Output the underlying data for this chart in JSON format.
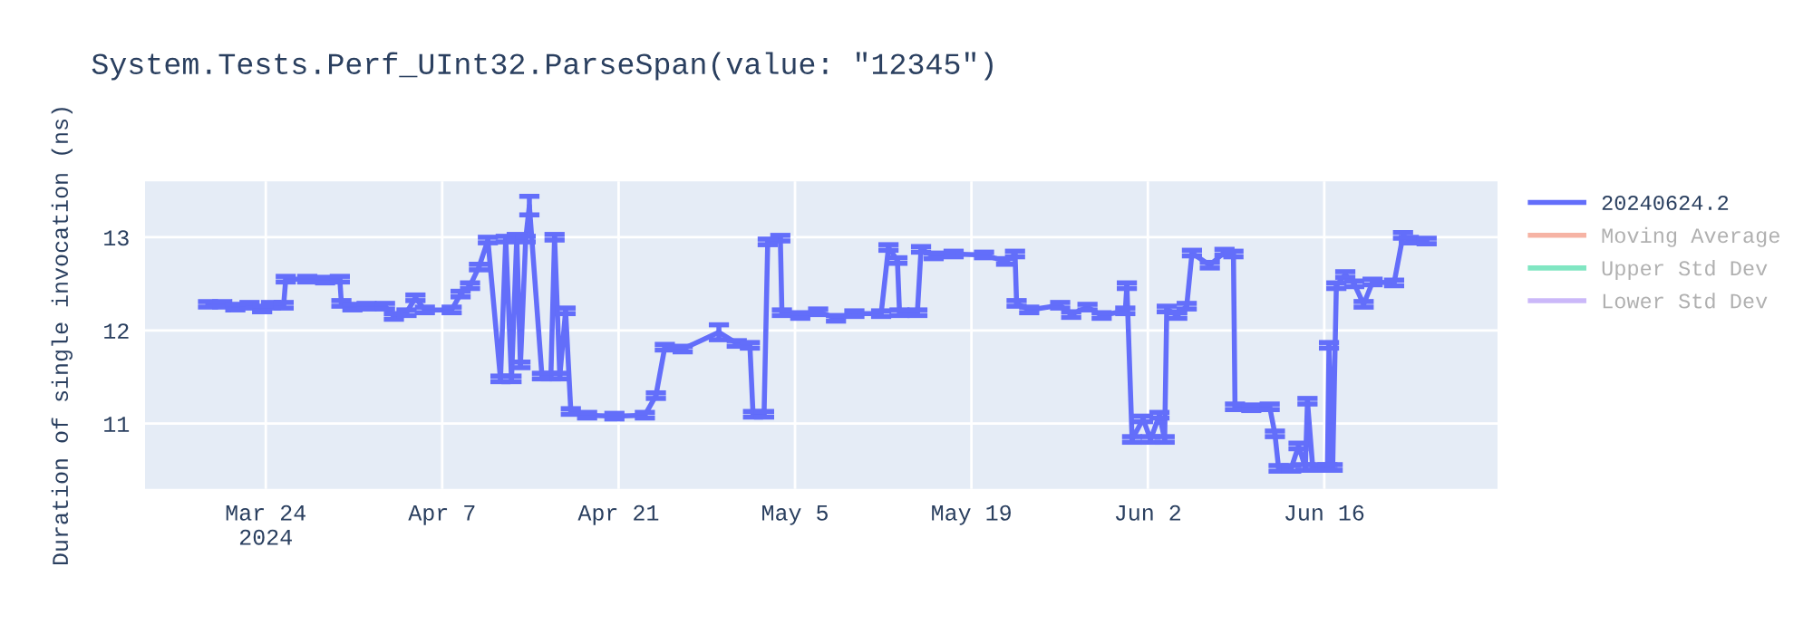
{
  "chart_data": {
    "type": "line",
    "title": "System.Tests.Perf_UInt32.ParseSpan(value: \"12345\")",
    "ylabel": "Duration of single invocation (ns)",
    "x": [
      "2024-03-19T10:00",
      "2024-03-20T13:00",
      "2024-03-21T14:00",
      "2024-03-22T17:00",
      "2024-03-23T17:00",
      "2024-03-24T10:00",
      "2024-03-25T10:00",
      "2024-03-25T14:00",
      "2024-03-27T07:00",
      "2024-03-28T17:00",
      "2024-03-29T21:00",
      "2024-03-30T00:00",
      "2024-03-30T21:00",
      "2024-04-01T00:00",
      "2024-04-02T11:00",
      "2024-04-03T04:00",
      "2024-04-04T04:00",
      "2024-04-04T21:00",
      "2024-04-05T15:00",
      "2024-04-07T18:00",
      "2024-04-08T11:00",
      "2024-04-09T05:00",
      "2024-04-09T22:00",
      "2024-04-10T15:00",
      "2024-04-11T15:00",
      "2024-04-12T01:00",
      "2024-04-12T12:00",
      "2024-04-12T22:00",
      "2024-04-13T05:00",
      "2024-04-13T15:00",
      "2024-04-13T22:00",
      "2024-04-14T22:00",
      "2024-04-15T15:00",
      "2024-04-15T22:00",
      "2024-04-16T08:00",
      "2024-04-16T19:00",
      "2024-04-17T05:00",
      "2024-04-18T12:00",
      "2024-04-20T16:00",
      "2024-04-23T02:00",
      "2024-04-23T23:00",
      "2024-04-24T16:00",
      "2024-04-26T02:00",
      "2024-04-28T23:00",
      "2024-04-30T09:00",
      "2024-05-01T10:00",
      "2024-05-01T16:00",
      "2024-05-02T13:00",
      "2024-05-02T20:00",
      "2024-05-03T20:00",
      "2024-05-03T23:00",
      "2024-05-05T10:00",
      "2024-05-06T20:00",
      "2024-05-08T06:00",
      "2024-05-09T17:00",
      "2024-05-11T20:00",
      "2024-05-12T10:00",
      "2024-05-13T03:00",
      "2024-05-13T07:00",
      "2024-05-14T17:00",
      "2024-05-15T00:00",
      "2024-05-16T00:00",
      "2024-05-17T14:00",
      "2024-05-20T00:00",
      "2024-05-21T18:00",
      "2024-05-22T11:00",
      "2024-05-22T14:00",
      "2024-05-23T14:00",
      "2024-05-26T01:00",
      "2024-05-26T22:00",
      "2024-05-28T05:00",
      "2024-05-29T08:00",
      "2024-05-31T05:00",
      "2024-05-31T08:00",
      "2024-05-31T18:00",
      "2024-06-01T15:00",
      "2024-06-02T05:00",
      "2024-06-02T22:00",
      "2024-06-03T08:00",
      "2024-06-03T12:00",
      "2024-06-04T08:00",
      "2024-06-05T02:00",
      "2024-06-05T12:00",
      "2024-06-06T22:00",
      "2024-06-08T02:00",
      "2024-06-08T19:00",
      "2024-06-08T22:00",
      "2024-06-10T05:00",
      "2024-06-11T16:00",
      "2024-06-12T02:00",
      "2024-06-12T09:00",
      "2024-06-13T09:00",
      "2024-06-13T23:00",
      "2024-06-14T12:00",
      "2024-06-14T16:00",
      "2024-06-15T02:00",
      "2024-06-16T06:00",
      "2024-06-16T09:00",
      "2024-06-16T16:00",
      "2024-06-16T23:00",
      "2024-06-17T16:00",
      "2024-06-18T09:00",
      "2024-06-19T03:00",
      "2024-06-19T20:00",
      "2024-06-21T13:00",
      "2024-06-22T06:00",
      "2024-06-22T17:00",
      "2024-06-24T03:00"
    ],
    "series": [
      {
        "name": "20240624.2",
        "color": "#636efa",
        "values": [
          12.28,
          12.28,
          12.25,
          12.27,
          12.23,
          12.27,
          12.27,
          12.55,
          12.55,
          12.54,
          12.55,
          12.29,
          12.25,
          12.26,
          12.26,
          12.15,
          12.19,
          12.35,
          12.22,
          12.22,
          12.39,
          12.48,
          12.68,
          12.97,
          11.48,
          12.98,
          11.48,
          13.0,
          11.63,
          12.98,
          13.34,
          11.51,
          11.51,
          13.0,
          11.51,
          12.21,
          11.13,
          11.09,
          11.08,
          11.09,
          11.3,
          11.82,
          11.8,
          11.98,
          11.86,
          11.84,
          11.1,
          11.1,
          12.95,
          12.99,
          12.19,
          12.16,
          12.2,
          12.13,
          12.18,
          12.18,
          12.89,
          12.75,
          12.19,
          12.19,
          12.87,
          12.8,
          12.82,
          12.81,
          12.74,
          12.82,
          12.29,
          12.22,
          12.27,
          12.17,
          12.25,
          12.16,
          12.21,
          12.48,
          10.83,
          11.05,
          10.83,
          11.09,
          10.83,
          12.23,
          12.16,
          12.26,
          12.83,
          12.7,
          12.84,
          12.82,
          11.18,
          11.17,
          11.18,
          10.89,
          10.52,
          10.52,
          10.76,
          10.53,
          11.24,
          10.53,
          10.53,
          11.84,
          10.53,
          12.48,
          12.6,
          12.5,
          12.28,
          12.52,
          12.51,
          13.02,
          12.97,
          12.96
        ],
        "errors": [
          0.03,
          0.03,
          0.03,
          0.03,
          0.03,
          0.03,
          0.03,
          0.03,
          0.03,
          0.03,
          0.03,
          0.03,
          0.03,
          0.03,
          0.03,
          0.03,
          0.03,
          0.03,
          0.03,
          0.03,
          0.03,
          0.03,
          0.03,
          0.03,
          0.03,
          0.03,
          0.03,
          0.03,
          0.03,
          0.03,
          0.1,
          0.03,
          0.03,
          0.03,
          0.03,
          0.03,
          0.03,
          0.03,
          0.03,
          0.03,
          0.03,
          0.03,
          0.03,
          0.08,
          0.03,
          0.03,
          0.03,
          0.03,
          0.03,
          0.03,
          0.03,
          0.03,
          0.03,
          0.03,
          0.03,
          0.03,
          0.03,
          0.03,
          0.03,
          0.03,
          0.03,
          0.03,
          0.03,
          0.03,
          0.03,
          0.03,
          0.03,
          0.03,
          0.03,
          0.03,
          0.03,
          0.03,
          0.03,
          0.03,
          0.03,
          0.03,
          0.03,
          0.03,
          0.03,
          0.03,
          0.03,
          0.03,
          0.03,
          0.03,
          0.03,
          0.03,
          0.03,
          0.03,
          0.03,
          0.03,
          0.03,
          0.03,
          0.03,
          0.03,
          0.03,
          0.03,
          0.03,
          0.03,
          0.03,
          0.03,
          0.03,
          0.03,
          0.03,
          0.03,
          0.03,
          0.03,
          0.03,
          0.03
        ]
      },
      {
        "name": "Moving Average",
        "color": "#f6b3a4",
        "values": [
          null,
          null,
          null,
          null,
          null,
          null,
          null,
          null,
          null,
          null,
          null,
          null,
          null,
          null,
          null,
          null,
          null,
          null,
          null,
          null,
          null,
          null,
          null,
          null,
          null,
          null,
          null,
          null,
          null,
          null,
          null,
          null,
          null,
          null,
          null,
          null,
          null,
          null,
          null,
          null,
          null,
          null,
          null,
          null,
          null,
          null,
          null,
          null,
          null,
          null,
          null,
          null,
          null,
          null,
          null,
          null,
          null,
          null,
          null,
          null,
          null,
          null,
          null,
          null,
          null,
          null,
          null,
          null,
          null,
          null,
          null,
          null,
          null,
          null,
          null,
          null,
          null,
          null,
          null,
          null,
          null,
          null,
          null,
          null,
          null,
          null,
          null,
          null,
          null,
          null,
          null,
          null,
          null,
          null,
          null,
          null,
          null,
          null,
          null,
          null,
          null,
          null,
          null,
          null,
          null,
          null,
          null,
          null
        ]
      },
      {
        "name": "Upper Std Dev",
        "color": "#80e6c2",
        "values": [
          null,
          null,
          null,
          null,
          null,
          null,
          null,
          null,
          null,
          null,
          null,
          null,
          null,
          null,
          null,
          null,
          null,
          null,
          null,
          null,
          null,
          null,
          null,
          null,
          null,
          null,
          null,
          null,
          null,
          null,
          null,
          null,
          null,
          null,
          null,
          null,
          null,
          null,
          null,
          null,
          null,
          null,
          null,
          null,
          null,
          null,
          null,
          null,
          null,
          null,
          null,
          null,
          null,
          null,
          null,
          null,
          null,
          null,
          null,
          null,
          null,
          null,
          null,
          null,
          null,
          null,
          null,
          null,
          null,
          null,
          null,
          null,
          null,
          null,
          null,
          null,
          null,
          null,
          null,
          null,
          null,
          null,
          null,
          null,
          null,
          null,
          null,
          null,
          null,
          null,
          null,
          null,
          null,
          null,
          null,
          null,
          null,
          null,
          null,
          null,
          null,
          null,
          null,
          null,
          null,
          null,
          null,
          null
        ]
      },
      {
        "name": "Lower Std Dev",
        "color": "#cbb8f9",
        "values": [
          null,
          null,
          null,
          null,
          null,
          null,
          null,
          null,
          null,
          null,
          null,
          null,
          null,
          null,
          null,
          null,
          null,
          null,
          null,
          null,
          null,
          null,
          null,
          null,
          null,
          null,
          null,
          null,
          null,
          null,
          null,
          null,
          null,
          null,
          null,
          null,
          null,
          null,
          null,
          null,
          null,
          null,
          null,
          null,
          null,
          null,
          null,
          null,
          null,
          null,
          null,
          null,
          null,
          null,
          null,
          null,
          null,
          null,
          null,
          null,
          null,
          null,
          null,
          null,
          null,
          null,
          null,
          null,
          null,
          null,
          null,
          null,
          null,
          null,
          null,
          null,
          null,
          null,
          null,
          null,
          null,
          null,
          null,
          null,
          null,
          null,
          null,
          null,
          null,
          null,
          null,
          null,
          null,
          null,
          null,
          null,
          null,
          null,
          null,
          null,
          null,
          null,
          null,
          null,
          null,
          null,
          null,
          null
        ]
      }
    ],
    "xlim": [
      "2024-03-14T10:00",
      "2024-06-29T18:00"
    ],
    "xticks": [
      {
        "value": "2024-03-24",
        "label": "Mar 24\n2024"
      },
      {
        "value": "2024-04-07",
        "label": "Apr 7"
      },
      {
        "value": "2024-04-21",
        "label": "Apr 21"
      },
      {
        "value": "2024-05-05",
        "label": "May 5"
      },
      {
        "value": "2024-05-19",
        "label": "May 19"
      },
      {
        "value": "2024-06-02",
        "label": "Jun 2"
      },
      {
        "value": "2024-06-16",
        "label": "Jun 16"
      }
    ],
    "ylim": [
      10.3,
      13.6
    ],
    "yticks": [
      11,
      12,
      13
    ],
    "grid": true,
    "legend": "top right",
    "line_style": "solid"
  }
}
